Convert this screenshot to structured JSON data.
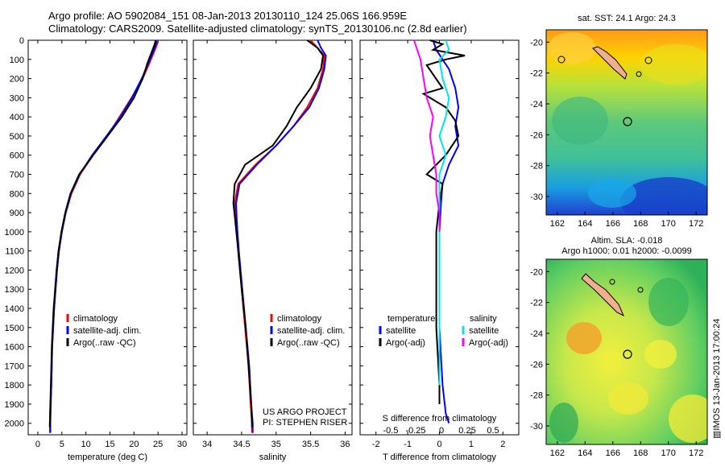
{
  "title": {
    "line1": "Argo profile: AO 5902084_151 08-Jan-2013 20130110_124 25.06S 166.959E",
    "line2": "Climatology: CARS2009. Satellite-adjusted climatology: synTS_20130106.nc (2.8d earlier)"
  },
  "colors": {
    "climatology": "#ff0000",
    "satellite": "#0000ff",
    "argo": "#000000",
    "satellite_s": "#00e5e5",
    "argo_s": "#ff00ff"
  },
  "chart_data": [
    {
      "type": "line",
      "xlabel": "temperature (deg C)",
      "ylabel": "",
      "xlim": [
        -2,
        31
      ],
      "ylim": [
        2060,
        0
      ],
      "x_ticks": [
        "0",
        "5",
        "10",
        "15",
        "20",
        "25",
        "30"
      ],
      "y_ticks": [
        "0",
        "100",
        "200",
        "300",
        "400",
        "500",
        "600",
        "700",
        "800",
        "900",
        "1000",
        "1100",
        "1200",
        "1300",
        "1400",
        "1500",
        "1600",
        "1700",
        "1800",
        "1900",
        "2000"
      ],
      "legend": [
        "climatology",
        "satellite-adj. clim.",
        "Argo(..raw -QC)"
      ],
      "series": [
        {
          "name": "climatology",
          "color": "#ff0000",
          "points": [
            [
              24.8,
              0
            ],
            [
              24.8,
              20
            ],
            [
              24.2,
              60
            ],
            [
              23.2,
              120
            ],
            [
              21.8,
              200
            ],
            [
              19.5,
              300
            ],
            [
              17.0,
              400
            ],
            [
              14.5,
              500
            ],
            [
              11.5,
              600
            ],
            [
              8.8,
              700
            ],
            [
              7.0,
              800
            ],
            [
              5.8,
              900
            ],
            [
              5.0,
              1000
            ],
            [
              4.4,
              1100
            ],
            [
              4.0,
              1200
            ],
            [
              3.7,
              1300
            ],
            [
              3.4,
              1400
            ],
            [
              3.2,
              1500
            ],
            [
              3.0,
              1600
            ],
            [
              2.9,
              1700
            ],
            [
              2.8,
              1800
            ],
            [
              2.6,
              1900
            ],
            [
              2.5,
              2000
            ],
            [
              2.5,
              2050
            ]
          ]
        },
        {
          "name": "satellite-adj. clim.",
          "color": "#0000ff",
          "points": [
            [
              24.6,
              0
            ],
            [
              24.6,
              20
            ],
            [
              24.0,
              60
            ],
            [
              23.0,
              120
            ],
            [
              21.6,
              200
            ],
            [
              19.6,
              300
            ],
            [
              17.2,
              400
            ],
            [
              14.3,
              500
            ],
            [
              11.3,
              600
            ],
            [
              8.7,
              700
            ],
            [
              6.9,
              800
            ],
            [
              5.8,
              900
            ],
            [
              5.0,
              1000
            ],
            [
              4.4,
              1100
            ],
            [
              4.0,
              1200
            ],
            [
              3.7,
              1300
            ],
            [
              3.4,
              1400
            ],
            [
              3.2,
              1500
            ],
            [
              3.0,
              1600
            ],
            [
              2.9,
              1700
            ],
            [
              2.8,
              1800
            ],
            [
              2.7,
              1900
            ],
            [
              2.6,
              2000
            ],
            [
              2.6,
              2050
            ]
          ]
        },
        {
          "name": "Argo(..raw -QC)",
          "color": "#000000",
          "points": [
            [
              24.5,
              0
            ],
            [
              24.3,
              20
            ],
            [
              23.7,
              60
            ],
            [
              22.8,
              120
            ],
            [
              21.8,
              200
            ],
            [
              20.0,
              300
            ],
            [
              17.5,
              400
            ],
            [
              14.5,
              500
            ],
            [
              11.5,
              600
            ],
            [
              8.6,
              700
            ],
            [
              6.8,
              800
            ],
            [
              5.7,
              900
            ],
            [
              4.9,
              1000
            ],
            [
              4.3,
              1100
            ],
            [
              3.9,
              1200
            ],
            [
              3.6,
              1300
            ],
            [
              3.3,
              1400
            ],
            [
              3.1,
              1500
            ],
            [
              2.9,
              1600
            ],
            [
              2.8,
              1700
            ],
            [
              2.7,
              1800
            ],
            [
              2.6,
              1900
            ],
            [
              2.5,
              2000
            ],
            [
              2.5,
              2020
            ]
          ]
        }
      ]
    },
    {
      "type": "line",
      "xlabel": "salinity",
      "ylabel": "",
      "xlim": [
        33.8,
        36.1
      ],
      "ylim": [
        2060,
        0
      ],
      "x_ticks": [
        "34",
        "34.5",
        "35",
        "35.5",
        "36"
      ],
      "legend": [
        "climatology",
        "satellite-adj. clim.",
        "Argo(..raw -QC)"
      ],
      "annotation": [
        "US ARGO PROJECT",
        "PI: STEPHEN RISER"
      ],
      "series": [
        {
          "name": "climatology",
          "color": "#ff0000",
          "points": [
            [
              35.5,
              0
            ],
            [
              35.6,
              40
            ],
            [
              35.7,
              80
            ],
            [
              35.68,
              150
            ],
            [
              35.6,
              250
            ],
            [
              35.45,
              350
            ],
            [
              35.25,
              450
            ],
            [
              35.0,
              550
            ],
            [
              34.7,
              650
            ],
            [
              34.45,
              750
            ],
            [
              34.4,
              850
            ],
            [
              34.42,
              950
            ],
            [
              34.45,
              1100
            ],
            [
              34.5,
              1300
            ],
            [
              34.55,
              1500
            ],
            [
              34.6,
              1700
            ],
            [
              34.63,
              1900
            ],
            [
              34.65,
              2000
            ],
            [
              34.65,
              2050
            ]
          ]
        },
        {
          "name": "satellite-adj. clim.",
          "color": "#0000ff",
          "points": [
            [
              35.6,
              0
            ],
            [
              35.65,
              40
            ],
            [
              35.72,
              80
            ],
            [
              35.7,
              150
            ],
            [
              35.62,
              250
            ],
            [
              35.48,
              350
            ],
            [
              35.25,
              450
            ],
            [
              35.0,
              550
            ],
            [
              34.72,
              650
            ],
            [
              34.47,
              750
            ],
            [
              34.42,
              850
            ],
            [
              34.43,
              950
            ],
            [
              34.46,
              1100
            ],
            [
              34.51,
              1300
            ],
            [
              34.56,
              1500
            ],
            [
              34.61,
              1700
            ],
            [
              34.64,
              1900
            ],
            [
              34.66,
              2000
            ],
            [
              34.66,
              2050
            ]
          ]
        },
        {
          "name": "Argo(..raw -QC)",
          "color": "#000000",
          "points": [
            [
              35.45,
              0
            ],
            [
              35.6,
              40
            ],
            [
              35.68,
              80
            ],
            [
              35.65,
              150
            ],
            [
              35.5,
              250
            ],
            [
              35.3,
              350
            ],
            [
              35.15,
              450
            ],
            [
              34.95,
              550
            ],
            [
              34.55,
              650
            ],
            [
              34.4,
              750
            ],
            [
              34.38,
              850
            ],
            [
              34.41,
              950
            ],
            [
              34.45,
              1100
            ],
            [
              34.5,
              1300
            ],
            [
              34.56,
              1500
            ],
            [
              34.6,
              1700
            ],
            [
              34.64,
              1900
            ],
            [
              34.65,
              2000
            ],
            [
              34.65,
              2020
            ]
          ]
        }
      ]
    },
    {
      "type": "line",
      "xlabel": "T difference from climatology",
      "xlabel_top": "S difference from climatology",
      "xlim": [
        -2.5,
        2.5
      ],
      "ylim": [
        2060,
        0
      ],
      "x_ticks": [
        "-2",
        "-1",
        "0",
        "1",
        "2"
      ],
      "x_ticks_top": [
        "-0.5",
        "-0.25",
        "0",
        "0.25",
        "0.5"
      ],
      "legend_temperature": [
        "temperature",
        "satellite",
        "Argo(-adj)"
      ],
      "legend_salinity": [
        "salinity",
        "satellite",
        "Argo(-adj)"
      ],
      "series": [
        {
          "name": "satellite",
          "color": "#0000ff",
          "points": [
            [
              -0.2,
              0
            ],
            [
              -0.1,
              50
            ],
            [
              0.1,
              100
            ],
            [
              0.3,
              150
            ],
            [
              0.5,
              250
            ],
            [
              0.6,
              350
            ],
            [
              0.5,
              450
            ],
            [
              0.6,
              550
            ],
            [
              0.3,
              650
            ],
            [
              0.1,
              750
            ],
            [
              0.05,
              850
            ],
            [
              0.0,
              1000
            ],
            [
              0.0,
              1200
            ],
            [
              0.0,
              1500
            ],
            [
              0.1,
              1800
            ],
            [
              0.2,
              1950
            ],
            [
              0.3,
              2000
            ]
          ]
        },
        {
          "name": "Argo(-adj)",
          "color": "#000000",
          "points": [
            [
              -0.3,
              0
            ],
            [
              0.1,
              20
            ],
            [
              -0.2,
              50
            ],
            [
              0.8,
              80
            ],
            [
              0.2,
              100
            ],
            [
              -0.4,
              130
            ],
            [
              0.1,
              250
            ],
            [
              -0.5,
              280
            ],
            [
              0.2,
              350
            ],
            [
              0.5,
              420
            ],
            [
              0.6,
              500
            ],
            [
              0.2,
              600
            ],
            [
              -0.4,
              700
            ],
            [
              0.1,
              750
            ],
            [
              0.0,
              850
            ],
            [
              -0.1,
              1000
            ],
            [
              -0.1,
              1200
            ],
            [
              -0.1,
              1500
            ],
            [
              0.0,
              1800
            ],
            [
              0.0,
              1900
            ]
          ]
        },
        {
          "name": "satellite",
          "color": "#00e5e5",
          "points": [
            [
              0.2,
              0
            ],
            [
              0.3,
              50
            ],
            [
              0.0,
              100
            ],
            [
              0.1,
              200
            ],
            [
              0.3,
              300
            ],
            [
              0.2,
              400
            ],
            [
              0.0,
              500
            ],
            [
              0.2,
              600
            ],
            [
              0.0,
              700
            ],
            [
              0.0,
              800
            ],
            [
              0.0,
              1000
            ],
            [
              0.0,
              1300
            ],
            [
              0.0,
              1600
            ],
            [
              0.0,
              1800
            ]
          ]
        },
        {
          "name": "Argo(-adj)",
          "color": "#ff00ff",
          "points": [
            [
              -0.8,
              0
            ],
            [
              -0.7,
              50
            ],
            [
              -0.6,
              100
            ],
            [
              -0.5,
              200
            ],
            [
              -0.4,
              300
            ],
            [
              -0.2,
              400
            ],
            [
              -0.3,
              500
            ],
            [
              -0.2,
              600
            ],
            [
              -0.1,
              700
            ],
            [
              -0.1,
              800
            ],
            [
              0.0,
              900
            ],
            [
              0.0,
              1000
            ]
          ]
        }
      ]
    },
    {
      "type": "heatmap",
      "title": "sat. SST: 24.1  Argo: 24.3",
      "xlim": [
        161.2,
        172.8
      ],
      "ylim": [
        -31.2,
        -19.2
      ],
      "x_ticks": [
        "162",
        "164",
        "166",
        "168",
        "170",
        "172"
      ],
      "y_ticks": [
        "-20",
        "-22",
        "-24",
        "-26",
        "-28",
        "-30"
      ]
    },
    {
      "type": "heatmap",
      "title": "Altim. SLA: -0.018",
      "subtitle": "Argo h1000: 0.01 h2000: -0.0099",
      "xlim": [
        161.2,
        172.8
      ],
      "ylim": [
        -31.2,
        -19.2
      ],
      "x_ticks": [
        "162",
        "164",
        "166",
        "168",
        "170",
        "172"
      ],
      "y_ticks": [
        "-20",
        "-22",
        "-24",
        "-26",
        "-28",
        "-30"
      ]
    }
  ],
  "footer": "▥IMOS 13-Jan-2013 17:00:24"
}
